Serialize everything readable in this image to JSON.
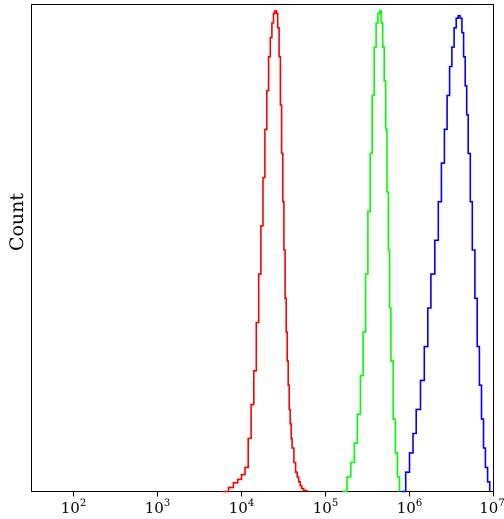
{
  "chart_data": {
    "type": "line",
    "title": "",
    "xlabel": "",
    "ylabel": "Count",
    "x_scale": "log",
    "xlim": [
      31.6,
      10000000
    ],
    "ylim": [
      0,
      1
    ],
    "grid": false,
    "x_ticks": [
      {
        "value": 100,
        "base": "10",
        "exp": "2"
      },
      {
        "value": 1000,
        "base": "10",
        "exp": "3"
      },
      {
        "value": 10000,
        "base": "10",
        "exp": "4"
      },
      {
        "value": 100000,
        "base": "10",
        "exp": "5"
      },
      {
        "value": 1000000,
        "base": "10",
        "exp": "6"
      },
      {
        "value": 10000000,
        "base": "10",
        "exp": "7"
      }
    ],
    "series": [
      {
        "color": "#ff0000",
        "x": [
          6000,
          7000,
          8000,
          9000,
          10000,
          11000,
          12000,
          13000,
          14000,
          15000,
          16000,
          17000,
          18000,
          19000,
          20000,
          21000,
          22000,
          23000,
          24000,
          25000,
          26000,
          27000,
          28000,
          29000,
          30000,
          31000,
          32000,
          33000,
          34000,
          35000,
          36000,
          37000,
          38000,
          39000,
          40000,
          42000,
          44000,
          46000,
          48000,
          50000,
          52000,
          55000,
          60000
        ],
        "y": [
          0.0,
          0.008,
          0.018,
          0.025,
          0.035,
          0.05,
          0.11,
          0.18,
          0.25,
          0.35,
          0.45,
          0.55,
          0.65,
          0.75,
          0.83,
          0.9,
          0.94,
          0.97,
          0.99,
          0.995,
          0.99,
          0.96,
          0.9,
          0.8,
          0.7,
          0.6,
          0.5,
          0.4,
          0.33,
          0.27,
          0.22,
          0.17,
          0.14,
          0.11,
          0.09,
          0.06,
          0.04,
          0.03,
          0.02,
          0.012,
          0.006,
          0.002,
          0.0
        ]
      },
      {
        "color": "#00ff00",
        "x": [
          160000,
          180000,
          200000,
          220000,
          240000,
          260000,
          280000,
          300000,
          320000,
          340000,
          360000,
          380000,
          400000,
          420000,
          440000,
          460000,
          480000,
          500000,
          520000,
          540000,
          560000,
          580000,
          600000,
          640000,
          680000,
          720000,
          760000
        ],
        "y": [
          0.0,
          0.03,
          0.06,
          0.1,
          0.16,
          0.24,
          0.33,
          0.45,
          0.58,
          0.7,
          0.82,
          0.92,
          0.97,
          0.99,
          0.995,
          0.97,
          0.92,
          0.85,
          0.75,
          0.62,
          0.5,
          0.38,
          0.27,
          0.15,
          0.08,
          0.03,
          0.0
        ]
      },
      {
        "color": "#0000ff",
        "x": [
          800000,
          900000,
          1000000,
          1100000,
          1200000,
          1350000,
          1500000,
          1650000,
          1800000,
          2000000,
          2200000,
          2400000,
          2600000,
          2800000,
          3000000,
          3200000,
          3400000,
          3600000,
          3800000,
          4000000,
          4200000,
          4400000,
          4600000,
          4800000,
          5000000,
          5300000,
          5600000,
          6000000,
          6400000,
          6800000,
          7200000,
          7600000,
          8000000,
          8500000,
          9000000
        ],
        "y": [
          0.0,
          0.04,
          0.08,
          0.12,
          0.17,
          0.23,
          0.3,
          0.38,
          0.45,
          0.52,
          0.6,
          0.68,
          0.75,
          0.82,
          0.88,
          0.92,
          0.96,
          0.98,
          0.985,
          0.98,
          0.95,
          0.9,
          0.84,
          0.78,
          0.7,
          0.6,
          0.5,
          0.4,
          0.3,
          0.22,
          0.15,
          0.09,
          0.05,
          0.02,
          0.0
        ]
      }
    ]
  }
}
